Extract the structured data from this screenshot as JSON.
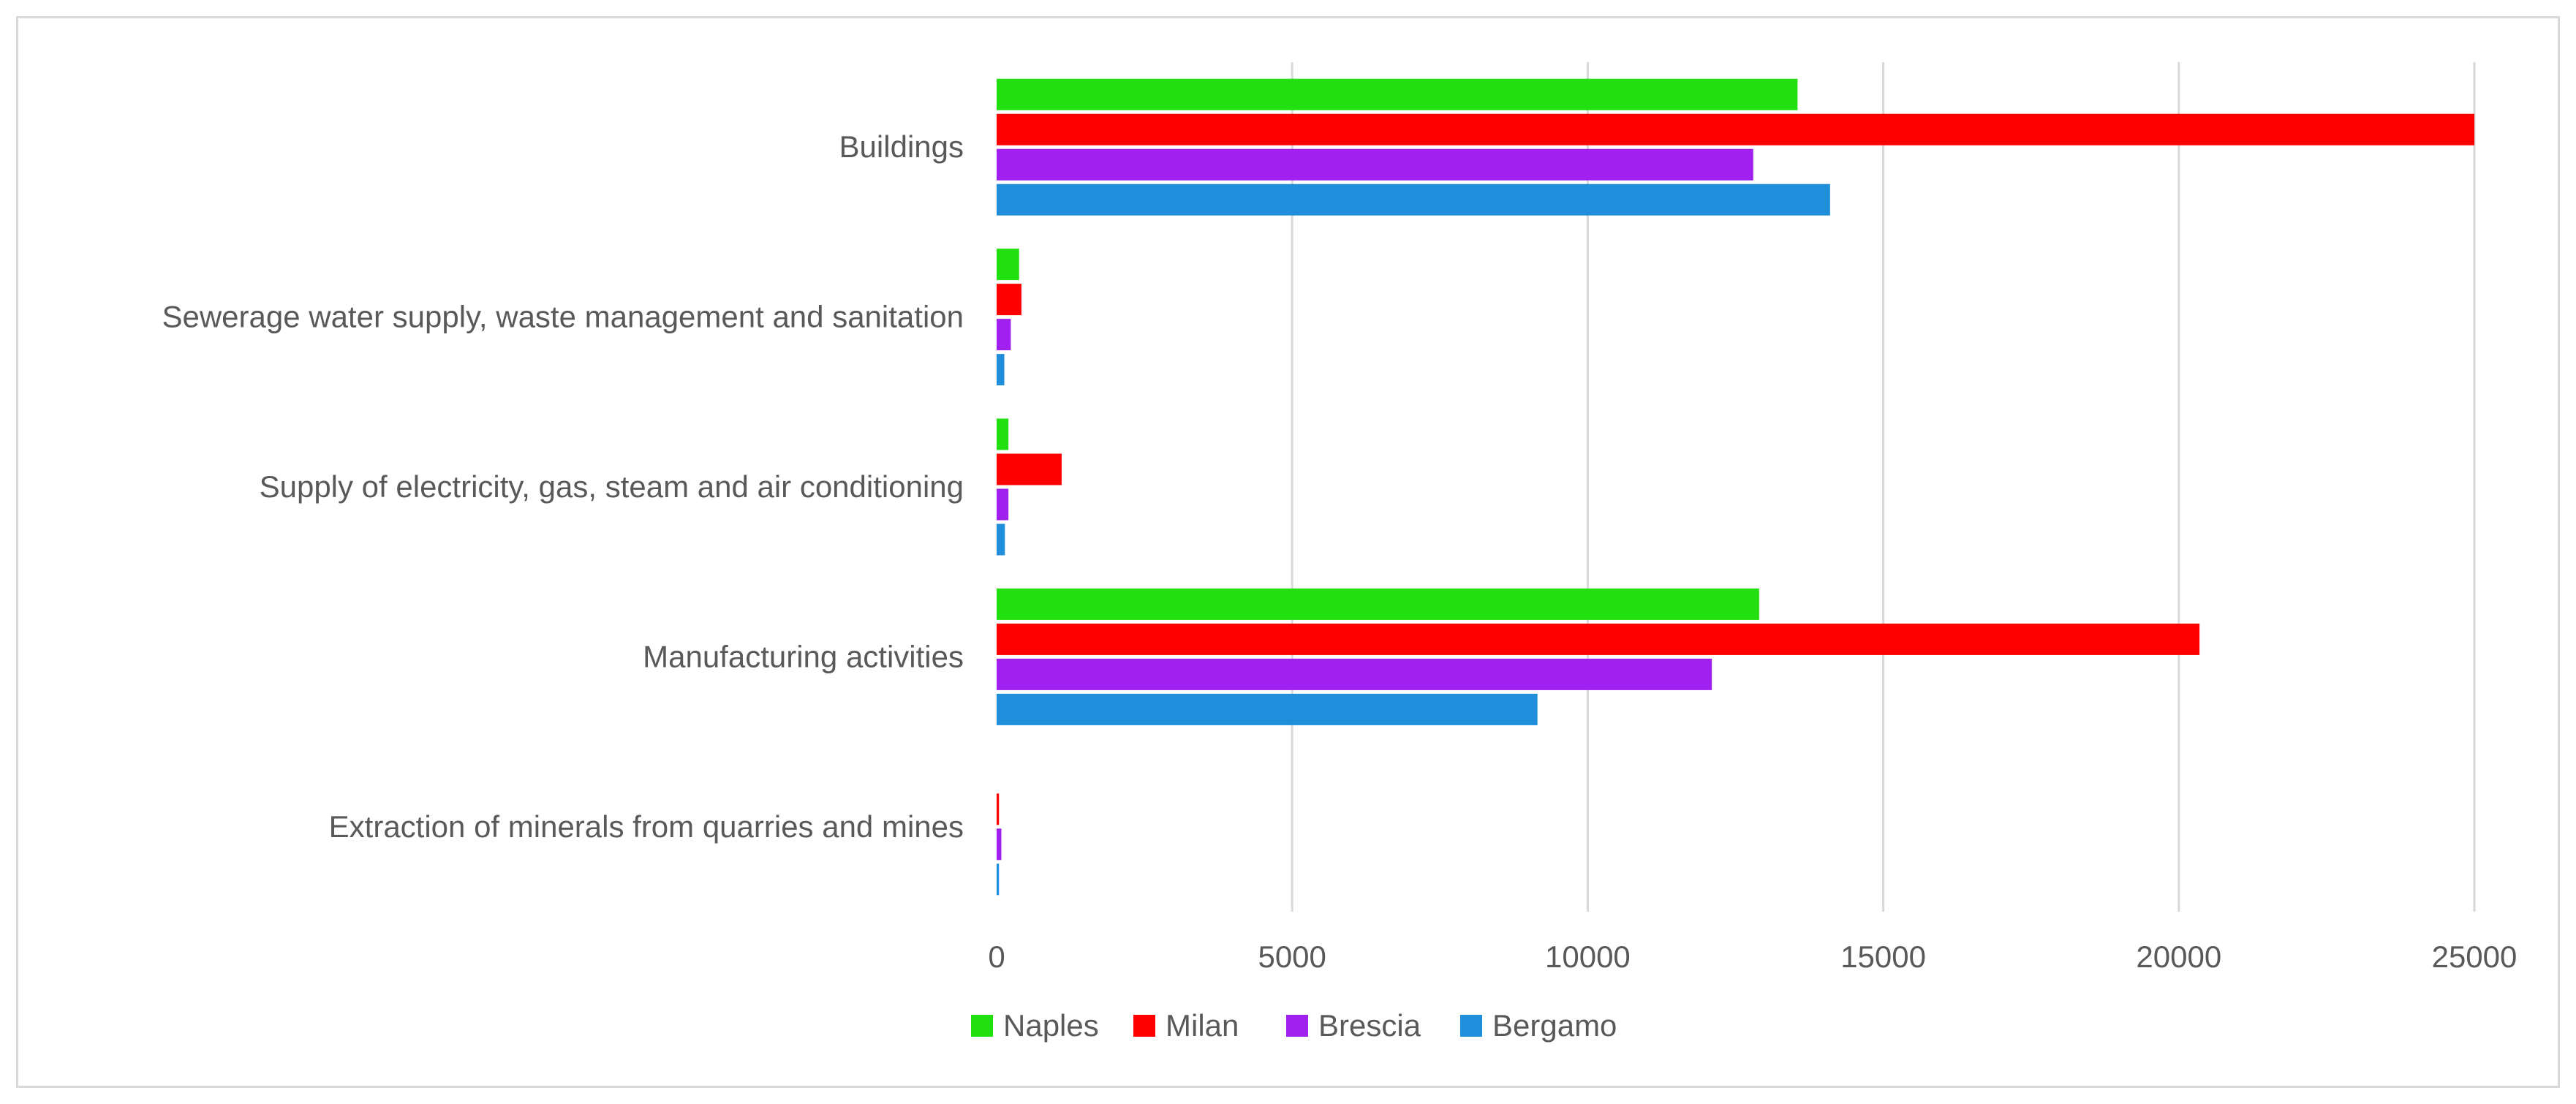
{
  "chart_data": {
    "type": "bar",
    "orientation": "horizontal",
    "title": "",
    "xlabel": "",
    "ylabel": "",
    "xlim": [
      0,
      25000
    ],
    "ticks": [
      0,
      5000,
      10000,
      15000,
      20000,
      25000
    ],
    "tick_labels": [
      "0",
      "5000",
      "10000",
      "15000",
      "20000",
      "25000"
    ],
    "grid": "vertical",
    "legend_position": "bottom",
    "categories": [
      "Buildings",
      "Sewerage water supply, waste management and sanitation",
      "Supply of electricity, gas, steam and air conditioning",
      "Manufacturing activities",
      "Extraction of minerals from quarries and mines"
    ],
    "series": [
      {
        "name": "Naples",
        "color": "#22e00f",
        "values": [
          13550,
          380,
          200,
          12900,
          0
        ]
      },
      {
        "name": "Milan",
        "color": "#ff0000",
        "values": [
          25000,
          420,
          1100,
          20350,
          40
        ]
      },
      {
        "name": "Brescia",
        "color": "#a020f0",
        "values": [
          12800,
          240,
          200,
          12100,
          80
        ]
      },
      {
        "name": "Bergamo",
        "color": "#1f8fdb",
        "values": [
          14100,
          130,
          140,
          9150,
          40
        ]
      }
    ]
  }
}
